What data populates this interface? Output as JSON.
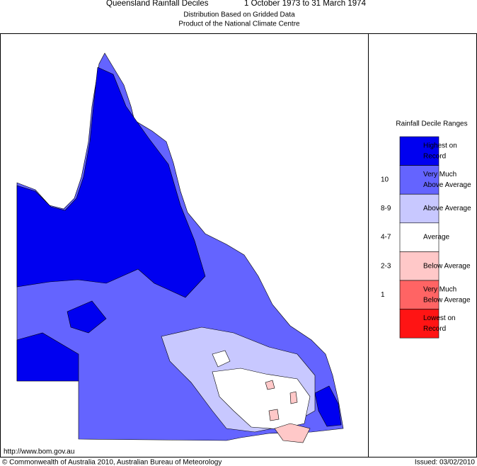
{
  "header": {
    "title": "Queensland Rainfall Deciles",
    "period": "1 October 1973 to 31 March 1974",
    "subtitle": [
      "Distribution Based on Gridded Data",
      "Product of the National Climate Centre"
    ]
  },
  "legend": {
    "title": "Rainfall Decile Ranges",
    "entries": [
      {
        "label": [
          "Highest on",
          "Record"
        ],
        "color": "#0000f0"
      },
      {
        "range": "10",
        "label": [
          "Very Much",
          "Above Average"
        ],
        "color": "#6464ff"
      },
      {
        "range": "8-9",
        "label": [
          "Above Average"
        ],
        "color": "#c8c8ff"
      },
      {
        "range": "4-7",
        "label": [
          "Average"
        ],
        "color": "#ffffff"
      },
      {
        "range": "2-3",
        "label": [
          "Below Average"
        ],
        "color": "#ffc8c8"
      },
      {
        "range": "1",
        "label": [
          "Very Much",
          "Below Average"
        ],
        "color": "#ff6464"
      },
      {
        "label": [
          "Lowest on",
          "Record"
        ],
        "color": "#ff1414"
      }
    ]
  },
  "footer": {
    "url": "http://www.bom.gov.au",
    "copyright": "© Commonwealth of Australia 2010, Australian Bureau of Meteorology",
    "issued": "Issued: 03/02/2010"
  }
}
